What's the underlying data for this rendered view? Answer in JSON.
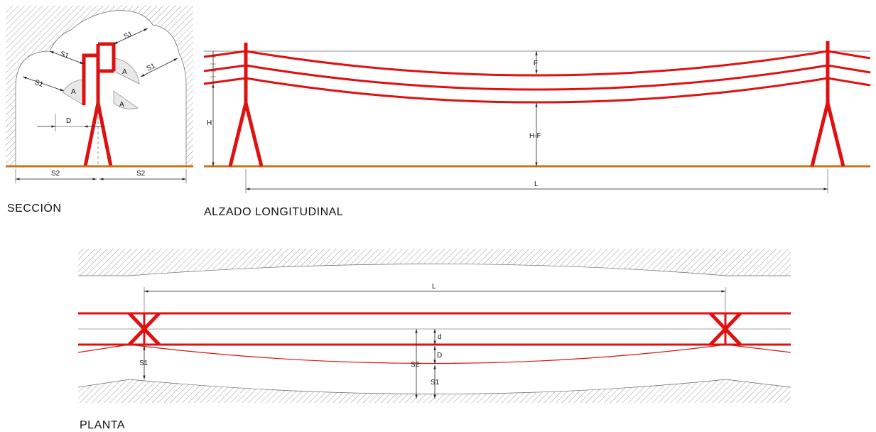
{
  "views": {
    "seccion": {
      "title": "SECCIÓN",
      "labels": {
        "s1_a": "S1",
        "s1_b": "S1",
        "s1_c": "S1",
        "s1_d": "S1",
        "a_1": "A",
        "a_2": "A",
        "a_3": "A",
        "d": "D",
        "s2_left": "S2",
        "s2_right": "S2"
      }
    },
    "alzado": {
      "title": "ALZADO LONGITUDINAL",
      "labels": {
        "f": "F",
        "h": "H",
        "hf": "H-F",
        "l": "L"
      }
    },
    "planta": {
      "title": "PLANTA",
      "labels": {
        "l": "L",
        "d_small": "d",
        "d_big": "D",
        "s1_left": "S1",
        "s1_right": "S1",
        "s2": "S2"
      }
    }
  },
  "colors": {
    "conductor": "#e01010",
    "ground": "#c8731e",
    "hatch": "#9a9a9a"
  }
}
